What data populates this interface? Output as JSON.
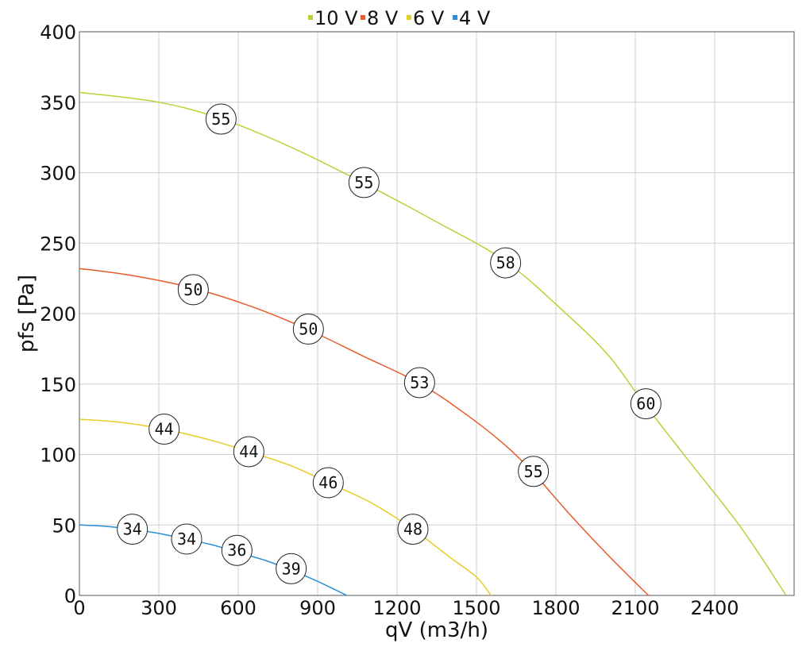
{
  "chart_data": {
    "type": "line",
    "xlabel": "qV (m3/h)",
    "ylabel": "pfs [Pa]",
    "xlim": [
      0,
      2700
    ],
    "ylim": [
      0,
      400
    ],
    "x_ticks": [
      0,
      300,
      600,
      900,
      1200,
      1500,
      1800,
      2100,
      2400
    ],
    "y_ticks": [
      0,
      50,
      100,
      150,
      200,
      250,
      300,
      350,
      400
    ],
    "grid": true,
    "legend_position": "top-center",
    "series": [
      {
        "name": "10 V",
        "color": "#b5d334",
        "points": [
          [
            0,
            357
          ],
          [
            300,
            350
          ],
          [
            540,
            338
          ],
          [
            800,
            318
          ],
          [
            1070,
            293
          ],
          [
            1350,
            265
          ],
          [
            1610,
            237
          ],
          [
            1850,
            198
          ],
          [
            2000,
            170
          ],
          [
            2130,
            137
          ],
          [
            2300,
            96
          ],
          [
            2500,
            48
          ],
          [
            2670,
            0
          ]
        ],
        "markers": [
          {
            "x": 535,
            "y": 338,
            "label": "55"
          },
          {
            "x": 1075,
            "y": 293,
            "label": "55"
          },
          {
            "x": 1610,
            "y": 236,
            "label": "58"
          },
          {
            "x": 2140,
            "y": 136,
            "label": "60"
          }
        ]
      },
      {
        "name": "8 V",
        "color": "#e85a2b",
        "points": [
          [
            0,
            232
          ],
          [
            200,
            227
          ],
          [
            430,
            218
          ],
          [
            650,
            205
          ],
          [
            860,
            189
          ],
          [
            1070,
            170
          ],
          [
            1280,
            151
          ],
          [
            1450,
            130
          ],
          [
            1600,
            108
          ],
          [
            1710,
            88
          ],
          [
            1850,
            58
          ],
          [
            2000,
            28
          ],
          [
            2150,
            0
          ]
        ],
        "markers": [
          {
            "x": 430,
            "y": 217,
            "label": "50"
          },
          {
            "x": 865,
            "y": 189,
            "label": "50"
          },
          {
            "x": 1285,
            "y": 151,
            "label": "53"
          },
          {
            "x": 1715,
            "y": 88,
            "label": "55"
          }
        ]
      },
      {
        "name": "6 V",
        "color": "#e6cd26",
        "points": [
          [
            0,
            125
          ],
          [
            150,
            123
          ],
          [
            320,
            118
          ],
          [
            500,
            110
          ],
          [
            640,
            102
          ],
          [
            800,
            92
          ],
          [
            940,
            80
          ],
          [
            1100,
            66
          ],
          [
            1260,
            47
          ],
          [
            1400,
            27
          ],
          [
            1500,
            13
          ],
          [
            1555,
            0
          ]
        ],
        "markers": [
          {
            "x": 320,
            "y": 118,
            "label": "44"
          },
          {
            "x": 640,
            "y": 102,
            "label": "44"
          },
          {
            "x": 940,
            "y": 80,
            "label": "46"
          },
          {
            "x": 1260,
            "y": 47,
            "label": "48"
          }
        ]
      },
      {
        "name": "4 V",
        "color": "#2a8fd8",
        "points": [
          [
            0,
            50
          ],
          [
            100,
            49
          ],
          [
            200,
            47
          ],
          [
            300,
            44
          ],
          [
            400,
            40
          ],
          [
            500,
            36
          ],
          [
            590,
            31
          ],
          [
            700,
            25
          ],
          [
            800,
            18
          ],
          [
            900,
            10
          ],
          [
            1010,
            0
          ]
        ],
        "markers": [
          {
            "x": 200,
            "y": 47,
            "label": "34"
          },
          {
            "x": 405,
            "y": 40,
            "label": "34"
          },
          {
            "x": 595,
            "y": 32,
            "label": "36"
          },
          {
            "x": 800,
            "y": 19,
            "label": "39"
          }
        ]
      }
    ]
  }
}
